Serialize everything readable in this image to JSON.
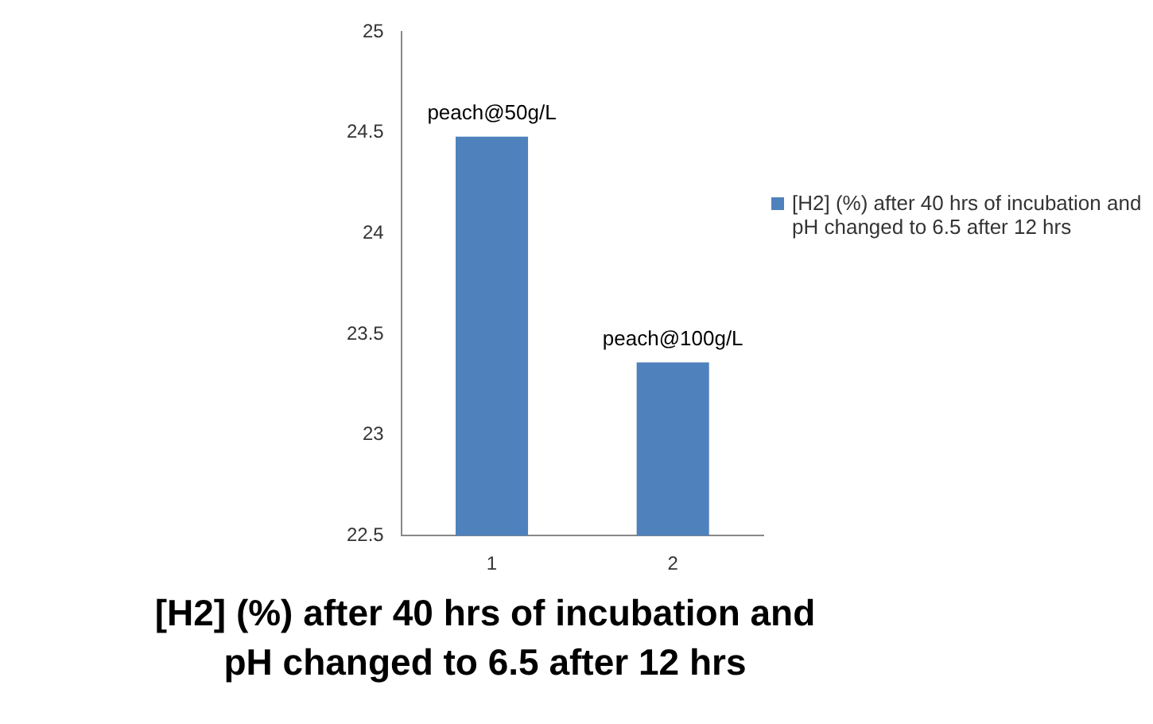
{
  "chart_data": {
    "type": "bar",
    "title": "[H2] (%) after 40 hrs of incubation and pH changed to 6.5 after 12 hrs",
    "categories": [
      "1",
      "2"
    ],
    "series": [
      {
        "name": "[H2] (%) after 40 hrs of incubation and pH changed to 6.5 after 12 hrs",
        "color": "#4f81bd",
        "values": [
          24.48,
          23.36
        ]
      }
    ],
    "ylim": [
      22.5,
      25
    ],
    "yticks": [
      22.5,
      23,
      23.5,
      24,
      24.5,
      25
    ],
    "grid": false,
    "legend": "right",
    "annotations": [
      {
        "text": "peach@50g/L",
        "x": "1",
        "y": 24.48
      },
      {
        "text": "peach@100g/L",
        "x": "2",
        "y": 23.36
      }
    ]
  }
}
